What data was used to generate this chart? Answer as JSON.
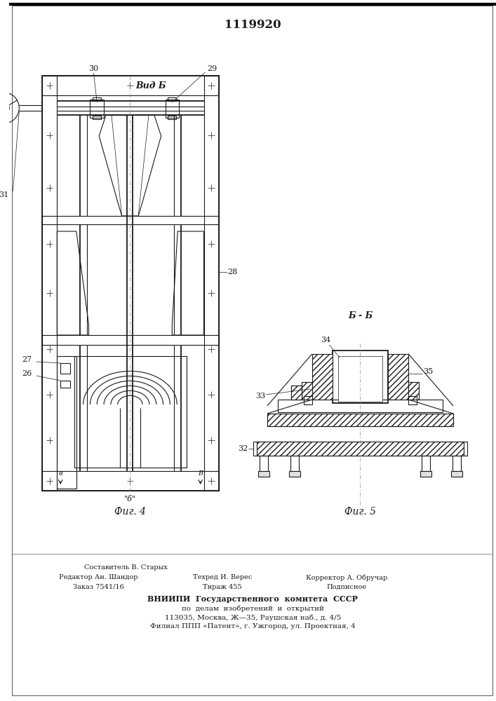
{
  "patent_number": "1119920",
  "fig4_caption": "Фиг. 4",
  "fig5_caption": "Фиг. 5",
  "vid_b_label": "Вид Б",
  "b_b_label": "Б - Б",
  "footer_col1_line1": "Редактор Ан. Шандор",
  "footer_col1_line2": "Заказ 7541/16",
  "footer_col2_line0": "Составитель В. Старых",
  "footer_col2_line1": "Техред И. Верес",
  "footer_col2_line2": "Тираж 455",
  "footer_col3_line1": "Корректор А. Обручар",
  "footer_col3_line2": "Подписное",
  "footer_vniip1": "ВНИИПИ  Государственного  комитета  СССР",
  "footer_vniip2": "по  делам  изобретений  и  открытий",
  "footer_addr1": "113035, Москва, Ж—35, Раушская наб., д. 4/5",
  "footer_addr2": "Филиал ППП «Патент», г. Ужгород, ул. Проектная, 4",
  "bg_color": "#ffffff",
  "line_color": "#1a1a1a"
}
